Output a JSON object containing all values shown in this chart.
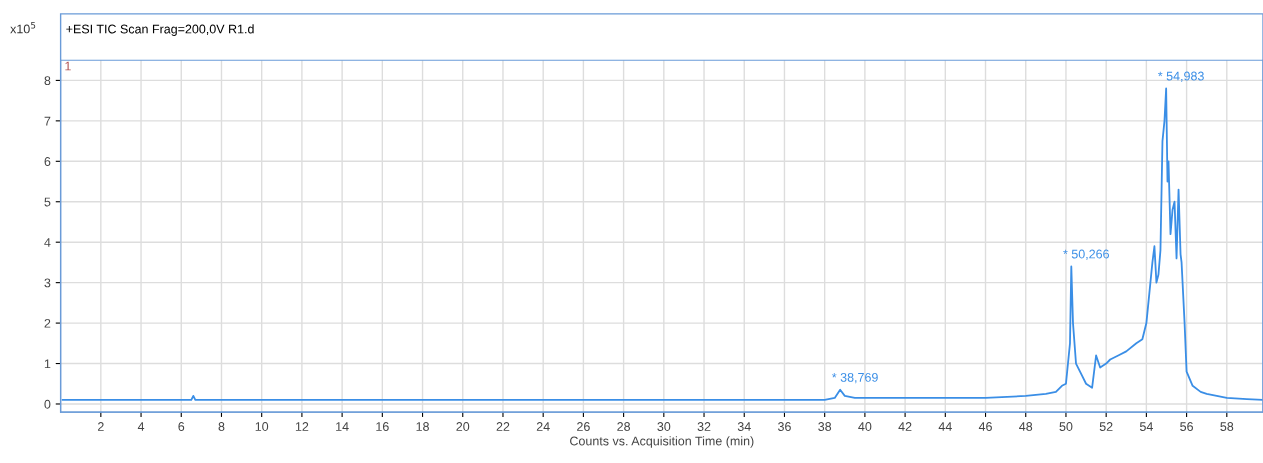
{
  "chart_data": {
    "type": "line",
    "title": "+ESI TIC Scan Frag=200,0V R1.d",
    "xlabel": "Counts vs. Acquisition Time (min)",
    "annotations": [
      "x10$^{5}$",
      "1",
      {
        "text": "* 38,769",
        "x": 38.769,
        "y": 0.35
      },
      {
        "text": "* 50,266",
        "x": 50.266,
        "y": 3.4
      },
      {
        "text": "* 54,983",
        "x": 54.983,
        "y": 7.8
      }
    ],
    "series": [
      {
        "color": "#3a8ee6",
        "x": [
          0.1,
          2,
          4,
          6,
          6.5,
          6.6,
          6.7,
          8,
          10,
          12,
          14,
          16,
          18,
          20,
          22,
          24,
          26,
          28,
          30,
          32,
          34,
          36,
          38,
          38.5,
          38.769,
          39.0,
          39.5,
          40,
          42,
          44,
          46,
          48,
          49,
          49.5,
          49.8,
          50.0,
          50.2,
          50.266,
          50.35,
          50.5,
          50.8,
          51.0,
          51.3,
          51.5,
          51.7,
          52.0,
          52.2,
          52.6,
          53.0,
          53.5,
          53.8,
          54.0,
          54.2,
          54.3,
          54.4,
          54.5,
          54.6,
          54.7,
          54.8,
          54.9,
          54.983,
          55.05,
          55.1,
          55.2,
          55.3,
          55.4,
          55.5,
          55.6,
          55.7,
          55.75,
          55.9,
          56.0,
          56.3,
          56.7,
          57,
          58,
          59,
          59.8
        ],
        "values": [
          0.1,
          0.1,
          0.1,
          0.1,
          0.1,
          0.2,
          0.1,
          0.1,
          0.1,
          0.1,
          0.1,
          0.1,
          0.1,
          0.1,
          0.1,
          0.1,
          0.1,
          0.1,
          0.1,
          0.1,
          0.1,
          0.1,
          0.1,
          0.15,
          0.35,
          0.2,
          0.15,
          0.15,
          0.15,
          0.15,
          0.15,
          0.2,
          0.25,
          0.3,
          0.45,
          0.5,
          1.5,
          3.4,
          2.0,
          1.0,
          0.7,
          0.5,
          0.4,
          1.2,
          0.9,
          1.0,
          1.1,
          1.2,
          1.3,
          1.5,
          1.6,
          2.0,
          3.0,
          3.5,
          3.9,
          3.0,
          3.2,
          3.8,
          6.5,
          7.0,
          7.8,
          5.5,
          6.0,
          4.2,
          4.8,
          5.0,
          3.6,
          5.3,
          3.7,
          3.5,
          2.0,
          0.8,
          0.45,
          0.3,
          0.25,
          0.15,
          0.12,
          0.1
        ]
      }
    ],
    "xlim": [
      0,
      59.8
    ],
    "ylim": [
      -0.2,
      8.5
    ],
    "xticks": [
      2,
      4,
      6,
      8,
      10,
      12,
      14,
      16,
      18,
      20,
      22,
      24,
      26,
      28,
      30,
      32,
      34,
      36,
      38,
      40,
      42,
      44,
      46,
      48,
      50,
      52,
      54,
      56,
      58
    ],
    "yticks": [
      0,
      1,
      2,
      3,
      4,
      5,
      6,
      7,
      8
    ],
    "grid": true,
    "legend": false
  }
}
